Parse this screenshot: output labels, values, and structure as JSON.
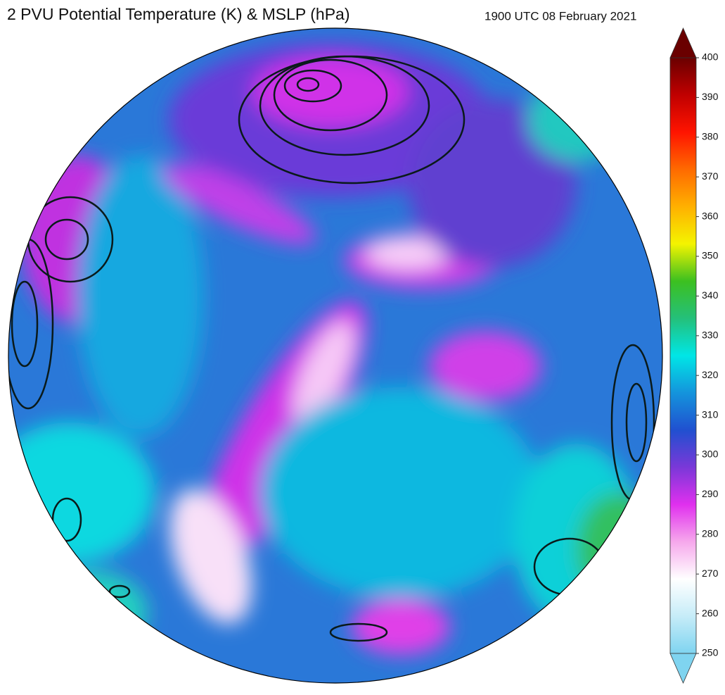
{
  "header": {
    "title": "2 PVU Potential Temperature (K) & MSLP (hPa)",
    "timestamp": "1900 UTC 08 February 2021"
  },
  "colorbar": {
    "range": [
      250,
      400
    ],
    "ticks": [
      250,
      260,
      270,
      280,
      290,
      300,
      310,
      320,
      330,
      340,
      350,
      360,
      370,
      380,
      390,
      400
    ],
    "colors": [
      "#7fd4f0",
      "#c6ecf8",
      "#ffffff",
      "#f6a8ec",
      "#e030ee",
      "#7a38d8",
      "#2050d0",
      "#1494dc",
      "#00e6e6",
      "#24c07a",
      "#3cc020",
      "#f4f400",
      "#ffb000",
      "#ff6a00",
      "#ff1400",
      "#c00000",
      "#6a0000"
    ]
  }
}
